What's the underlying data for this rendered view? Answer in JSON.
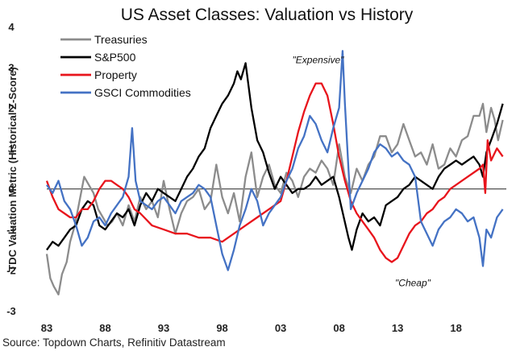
{
  "chart_data": {
    "type": "line",
    "title": "US Asset Classes: Valuation vs History",
    "ylabel": "TDC Valuation Metric (Historical Z-Score)",
    "xlabel": "",
    "ylim": [
      -3,
      4
    ],
    "xlim": [
      1983,
      2022.3
    ],
    "yticks": [
      4,
      3,
      2,
      1,
      0,
      -1,
      -2,
      -3
    ],
    "xticks": [
      {
        "value": 1983,
        "label": "83"
      },
      {
        "value": 1988,
        "label": "88"
      },
      {
        "value": 1993,
        "label": "93"
      },
      {
        "value": 1998,
        "label": "98"
      },
      {
        "value": 2003,
        "label": "03"
      },
      {
        "value": 2008,
        "label": "08"
      },
      {
        "value": 2013,
        "label": "13"
      },
      {
        "value": 2018,
        "label": "18"
      }
    ],
    "grid": false,
    "legend_position": "top-left",
    "series": [
      {
        "name": "Treasuries",
        "color": "#8c8c8c",
        "x": [
          1983.0,
          1983.3,
          1983.6,
          1984.0,
          1984.3,
          1984.7,
          1985.0,
          1985.4,
          1985.8,
          1986.2,
          1986.6,
          1987.0,
          1987.4,
          1987.8,
          1988.2,
          1988.6,
          1989.0,
          1989.5,
          1990.0,
          1990.5,
          1991.0,
          1991.5,
          1992.0,
          1992.5,
          1993.0,
          1993.5,
          1994.0,
          1994.5,
          1995.0,
          1995.5,
          1996.0,
          1996.5,
          1997.0,
          1997.5,
          1998.0,
          1998.5,
          1999.0,
          1999.5,
          2000.0,
          2000.5,
          2001.0,
          2001.5,
          2002.0,
          2002.5,
          2003.0,
          2003.5,
          2004.0,
          2004.5,
          2005.0,
          2005.5,
          2006.0,
          2006.5,
          2007.0,
          2007.5,
          2008.0,
          2008.5,
          2009.0,
          2009.5,
          2010.0,
          2010.5,
          2011.0,
          2011.5,
          2012.0,
          2012.5,
          2013.0,
          2013.5,
          2014.0,
          2014.5,
          2015.0,
          2015.5,
          2016.0,
          2016.5,
          2017.0,
          2017.5,
          2018.0,
          2018.5,
          2019.0,
          2019.5,
          2020.0,
          2020.3,
          2020.6,
          2021.0,
          2021.3,
          2021.6,
          2022.0
        ],
        "values": [
          -1.6,
          -2.2,
          -2.4,
          -2.6,
          -2.1,
          -1.8,
          -1.3,
          -0.9,
          -0.3,
          0.3,
          0.1,
          -0.1,
          -0.5,
          -0.7,
          -0.9,
          -0.8,
          -0.6,
          -0.9,
          -0.4,
          -0.8,
          -0.2,
          -0.5,
          -0.3,
          -0.7,
          0.2,
          -0.5,
          -1.1,
          -0.6,
          -0.3,
          -0.2,
          0.0,
          -0.5,
          -0.3,
          0.6,
          -0.2,
          -0.6,
          -0.1,
          -0.8,
          0.3,
          0.9,
          -0.2,
          0.3,
          0.6,
          0.1,
          -0.1,
          0.4,
          0.2,
          -0.2,
          0.3,
          0.5,
          0.4,
          0.7,
          0.5,
          0.1,
          1.1,
          0.3,
          -0.1,
          0.5,
          0.2,
          0.6,
          0.8,
          1.3,
          1.3,
          0.9,
          1.1,
          1.6,
          1.2,
          0.8,
          0.9,
          0.6,
          1.1,
          0.5,
          0.6,
          1.0,
          0.8,
          1.2,
          1.3,
          1.8,
          1.8,
          2.1,
          1.4,
          2.0,
          1.7,
          1.2,
          1.7
        ]
      },
      {
        "name": "S&P500",
        "color": "#000000",
        "x": [
          1983.0,
          1983.5,
          1984.0,
          1984.5,
          1985.0,
          1985.5,
          1986.0,
          1986.5,
          1987.0,
          1987.5,
          1988.0,
          1988.5,
          1989.0,
          1989.5,
          1990.0,
          1990.5,
          1991.0,
          1991.5,
          1992.0,
          1992.5,
          1993.0,
          1993.5,
          1994.0,
          1994.5,
          1995.0,
          1995.5,
          1996.0,
          1996.5,
          1997.0,
          1997.5,
          1998.0,
          1998.5,
          1999.0,
          1999.3,
          1999.6,
          2000.0,
          2000.5,
          2001.0,
          2001.5,
          2002.0,
          2002.5,
          2003.0,
          2003.5,
          2004.0,
          2004.5,
          2005.0,
          2005.5,
          2006.0,
          2006.5,
          2007.0,
          2007.5,
          2008.0,
          2008.4,
          2008.8,
          2009.1,
          2009.5,
          2010.0,
          2010.5,
          2011.0,
          2011.5,
          2012.0,
          2012.5,
          2013.0,
          2013.5,
          2014.0,
          2014.5,
          2015.0,
          2015.5,
          2016.0,
          2016.5,
          2017.0,
          2017.5,
          2018.0,
          2018.5,
          2019.0,
          2019.5,
          2020.0,
          2020.3,
          2020.6,
          2021.0,
          2021.5,
          2022.0
        ],
        "values": [
          -1.5,
          -1.3,
          -1.4,
          -1.2,
          -1.0,
          -0.9,
          -0.5,
          -0.3,
          -0.4,
          -0.9,
          -1.0,
          -0.8,
          -0.6,
          -0.7,
          -0.5,
          -0.9,
          -0.4,
          -0.1,
          -0.3,
          0.0,
          -0.1,
          -0.2,
          -0.3,
          0.0,
          0.3,
          0.5,
          0.8,
          1.0,
          1.5,
          1.8,
          2.1,
          2.3,
          2.6,
          2.9,
          2.7,
          3.1,
          2.0,
          1.2,
          0.9,
          0.4,
          0.0,
          0.3,
          0.1,
          -0.1,
          0.0,
          0.0,
          0.1,
          0.3,
          0.1,
          0.2,
          0.3,
          -0.2,
          -0.7,
          -1.2,
          -1.5,
          -1.0,
          -0.6,
          -0.8,
          -0.7,
          -0.9,
          -0.4,
          -0.3,
          -0.2,
          0.0,
          0.1,
          0.3,
          0.2,
          0.1,
          0.0,
          0.3,
          0.5,
          0.6,
          0.7,
          0.6,
          0.7,
          0.8,
          0.6,
          0.3,
          0.9,
          1.2,
          1.6,
          2.1
        ]
      },
      {
        "name": "Property",
        "color": "#e8141c",
        "x": [
          1983.0,
          1983.5,
          1984.0,
          1984.5,
          1985.0,
          1985.5,
          1986.0,
          1986.5,
          1987.0,
          1987.5,
          1988.0,
          1988.5,
          1989.0,
          1989.5,
          1990.0,
          1990.5,
          1991.0,
          1992.0,
          1993.0,
          1994.0,
          1995.0,
          1996.0,
          1997.0,
          1998.0,
          1999.0,
          2000.0,
          2001.0,
          2002.0,
          2003.0,
          2003.5,
          2004.0,
          2004.5,
          2005.0,
          2005.5,
          2006.0,
          2006.5,
          2007.0,
          2007.5,
          2008.0,
          2008.5,
          2009.0,
          2009.5,
          2010.0,
          2010.5,
          2011.0,
          2011.5,
          2012.0,
          2012.5,
          2013.0,
          2013.5,
          2014.0,
          2014.5,
          2015.0,
          2015.5,
          2016.0,
          2016.5,
          2017.0,
          2017.5,
          2018.0,
          2018.5,
          2019.0,
          2019.5,
          2020.0,
          2020.3,
          2020.5,
          2020.7,
          2021.0,
          2021.5,
          2022.0
        ],
        "values": [
          0.2,
          -0.2,
          -0.5,
          -0.6,
          -0.7,
          -0.7,
          -0.5,
          -0.5,
          -0.3,
          0.0,
          0.2,
          0.2,
          0.1,
          0.0,
          -0.2,
          -0.5,
          -0.6,
          -0.9,
          -1.0,
          -1.1,
          -1.1,
          -1.2,
          -1.2,
          -1.3,
          -1.1,
          -0.9,
          -0.7,
          -0.5,
          -0.3,
          0.2,
          0.8,
          1.4,
          1.9,
          2.3,
          2.6,
          2.6,
          2.3,
          1.6,
          0.8,
          0.2,
          -0.3,
          -0.6,
          -0.8,
          -1.0,
          -1.2,
          -1.5,
          -1.7,
          -1.8,
          -1.7,
          -1.4,
          -1.1,
          -0.9,
          -0.8,
          -0.6,
          -0.5,
          -0.3,
          -0.2,
          0.0,
          0.1,
          0.2,
          0.3,
          0.4,
          0.5,
          0.6,
          -0.1,
          1.2,
          0.7,
          1.0,
          0.8
        ]
      },
      {
        "name": "GSCI Commodities",
        "color": "#4472c4",
        "x": [
          1983.0,
          1983.5,
          1984.0,
          1984.5,
          1985.0,
          1985.5,
          1986.0,
          1986.5,
          1987.0,
          1987.5,
          1988.0,
          1988.5,
          1989.0,
          1989.5,
          1990.0,
          1990.3,
          1990.6,
          1991.0,
          1991.5,
          1992.0,
          1992.5,
          1993.0,
          1993.5,
          1994.0,
          1994.5,
          1995.0,
          1995.5,
          1996.0,
          1996.5,
          1997.0,
          1997.5,
          1998.0,
          1998.5,
          1999.0,
          1999.5,
          2000.0,
          2000.5,
          2001.0,
          2001.5,
          2002.0,
          2002.5,
          2003.0,
          2003.5,
          2004.0,
          2004.5,
          2005.0,
          2005.5,
          2006.0,
          2006.5,
          2007.0,
          2007.5,
          2008.0,
          2008.3,
          2008.5,
          2008.8,
          2009.0,
          2009.5,
          2010.0,
          2010.5,
          2011.0,
          2011.5,
          2012.0,
          2012.5,
          2013.0,
          2013.5,
          2014.0,
          2014.5,
          2015.0,
          2015.5,
          2016.0,
          2016.5,
          2017.0,
          2017.5,
          2018.0,
          2018.5,
          2019.0,
          2019.5,
          2020.0,
          2020.3,
          2020.6,
          2021.0,
          2021.5,
          2022.0
        ],
        "values": [
          0.1,
          -0.1,
          0.2,
          -0.3,
          -0.5,
          -0.9,
          -1.4,
          -1.2,
          -0.8,
          -0.7,
          -0.9,
          -0.6,
          -0.4,
          -0.2,
          0.3,
          1.5,
          0.2,
          -0.3,
          -0.4,
          -0.5,
          -0.3,
          -0.2,
          -0.4,
          -0.6,
          -0.3,
          -0.2,
          -0.1,
          0.1,
          0.0,
          -0.2,
          -0.9,
          -1.6,
          -2.0,
          -1.5,
          -0.9,
          -0.5,
          0.0,
          -0.3,
          -0.9,
          -0.6,
          -0.4,
          -0.2,
          0.2,
          0.5,
          1.0,
          1.3,
          1.8,
          1.6,
          1.2,
          0.9,
          1.5,
          2.0,
          3.4,
          2.1,
          0.5,
          -0.5,
          -0.1,
          0.2,
          0.5,
          0.9,
          1.1,
          1.0,
          0.8,
          0.9,
          0.7,
          0.6,
          0.3,
          -0.8,
          -1.1,
          -1.4,
          -1.0,
          -0.8,
          -0.7,
          -0.5,
          -0.6,
          -0.8,
          -0.7,
          -1.2,
          -1.9,
          -1.0,
          -1.2,
          -0.7,
          -0.5
        ]
      }
    ],
    "annotations": [
      {
        "text": "\"Expensive\"",
        "x": 2006.2,
        "y": 3.1
      },
      {
        "text": "\"Cheap\"",
        "x": 2014.3,
        "y": -2.4
      }
    ]
  },
  "source": "Source: Topdown Charts, Refinitiv Datastream"
}
